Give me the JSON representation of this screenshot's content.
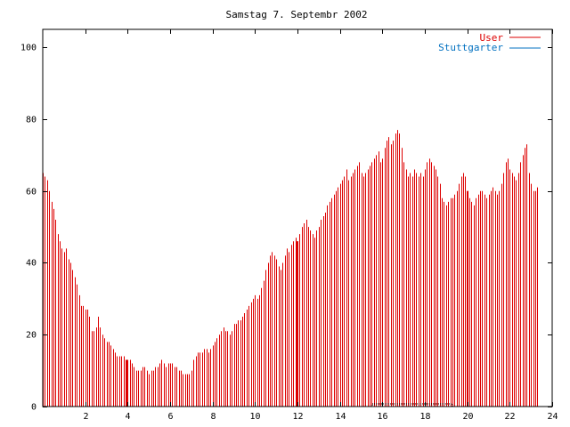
{
  "chart_data": {
    "type": "bar",
    "title": "Samstag 7. Septembr 2002",
    "xlabel": "",
    "ylabel": "",
    "xlim": [
      0,
      24
    ],
    "ylim": [
      0,
      105
    ],
    "xticks": [
      2,
      4,
      6,
      8,
      10,
      12,
      14,
      16,
      18,
      20,
      22,
      24
    ],
    "yticks": [
      0,
      20,
      40,
      60,
      80,
      100
    ],
    "grid": false,
    "legend_position": "top-right",
    "colors": {
      "user": "#dd0000",
      "stuttgarter": "#0070c0",
      "axis": "#000000"
    },
    "series": [
      {
        "name": "User",
        "bar_step_hours": 0.1,
        "values": [
          65,
          64,
          63,
          60,
          57,
          55,
          52,
          48,
          46,
          44,
          43,
          44,
          41,
          40,
          38,
          36,
          34,
          31,
          28,
          28,
          27,
          27,
          25,
          21,
          21,
          22,
          25,
          22,
          20,
          19,
          18,
          18,
          17,
          16,
          15,
          14,
          14,
          14,
          14,
          13,
          13,
          13,
          12,
          11,
          10,
          10,
          10,
          11,
          11,
          10,
          9,
          10,
          10,
          11,
          11,
          12,
          13,
          12,
          11,
          12,
          12,
          12,
          11,
          11,
          10,
          10,
          9,
          9,
          9,
          9,
          10,
          13,
          14,
          15,
          15,
          15,
          16,
          16,
          15,
          16,
          17,
          18,
          19,
          20,
          21,
          22,
          21,
          21,
          20,
          21,
          23,
          23,
          24,
          24,
          25,
          26,
          27,
          28,
          29,
          30,
          31,
          30,
          31,
          33,
          35,
          38,
          40,
          42,
          43,
          42,
          41,
          39,
          38,
          40,
          42,
          44,
          43,
          45,
          46,
          47,
          46,
          48,
          50,
          51,
          52,
          50,
          49,
          48,
          47,
          49,
          50,
          52,
          53,
          54,
          56,
          57,
          58,
          59,
          60,
          61,
          62,
          63,
          64,
          66,
          63,
          64,
          65,
          66,
          67,
          68,
          65,
          64,
          65,
          66,
          67,
          68,
          69,
          70,
          71,
          68,
          69,
          72,
          74,
          75,
          73,
          74,
          76,
          77,
          76,
          72,
          68,
          66,
          64,
          65,
          64,
          66,
          65,
          64,
          65,
          64,
          66,
          68,
          69,
          68,
          67,
          66,
          64,
          62,
          58,
          57,
          56,
          57,
          58,
          58,
          59,
          60,
          62,
          64,
          65,
          64,
          60,
          58,
          57,
          56,
          58,
          59,
          60,
          60,
          59,
          58,
          59,
          60,
          61,
          60,
          59,
          60,
          62,
          65,
          68,
          69,
          66,
          65,
          64,
          63,
          65,
          68,
          70,
          72,
          73,
          65,
          62,
          60,
          60,
          61
        ],
        "highlight_hours": [
          4,
          12,
          20
        ]
      },
      {
        "name": "Stuttgarter",
        "values": []
      }
    ]
  }
}
